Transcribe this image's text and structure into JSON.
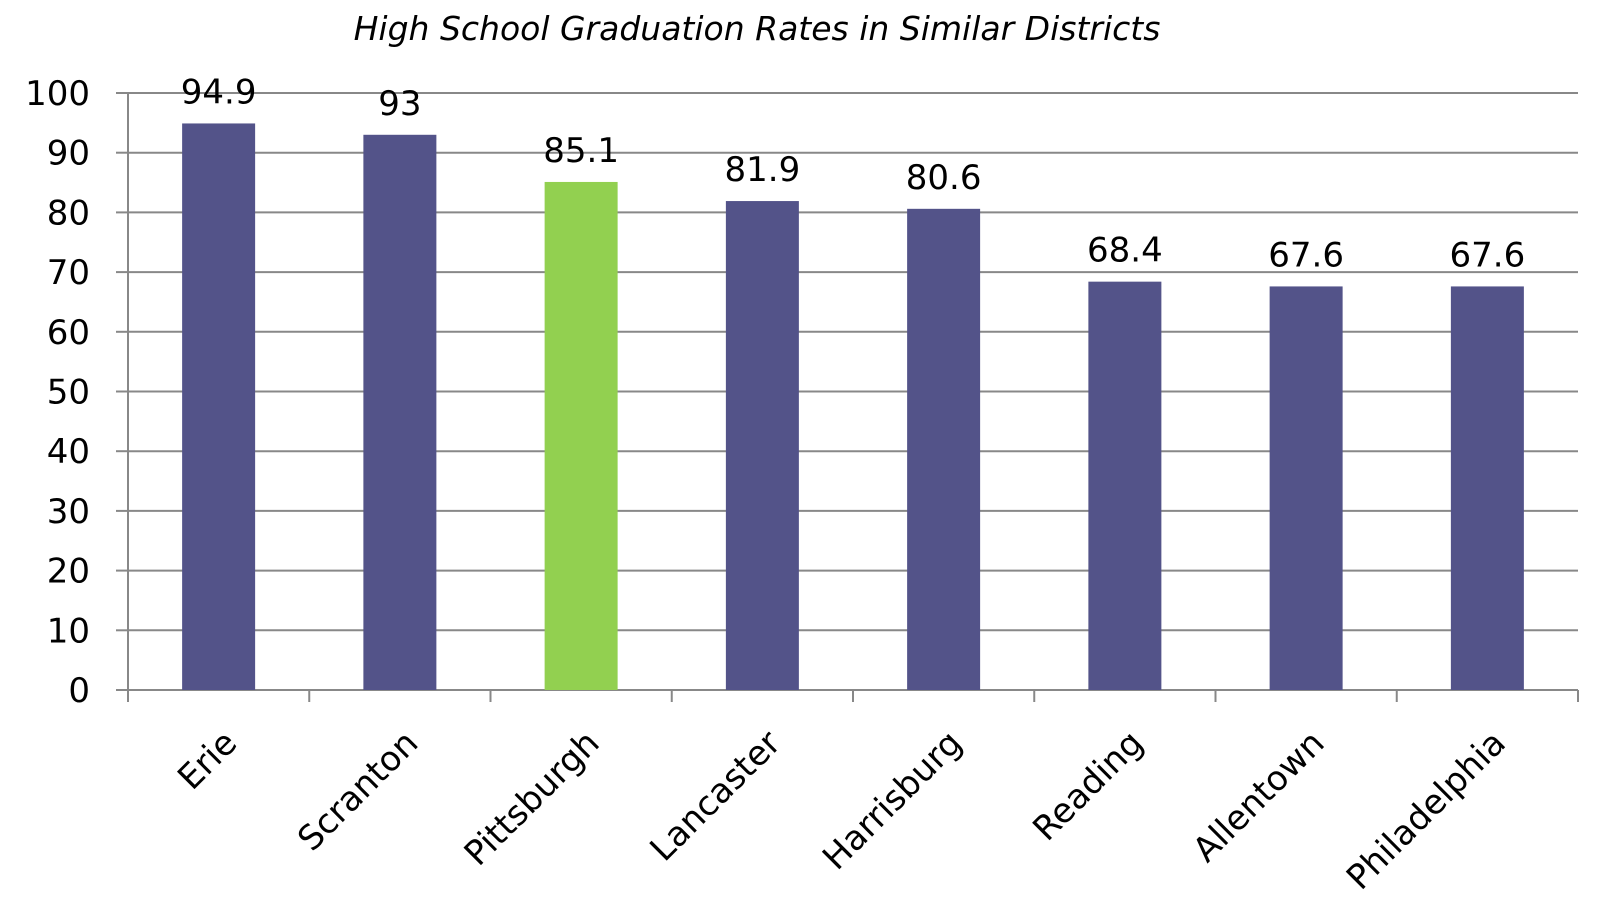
{
  "chart_data": {
    "type": "bar",
    "title": "High School Graduation Rates in Similar Districts",
    "categories": [
      "Erie",
      "Scranton",
      "Pittsburgh",
      "Lancaster",
      "Harrisburg",
      "Reading",
      "Allentown",
      "Philadelphia"
    ],
    "values": [
      94.9,
      93,
      85.1,
      81.9,
      80.6,
      68.4,
      67.6,
      67.6
    ],
    "colors": [
      "#535389",
      "#535389",
      "#92d050",
      "#535389",
      "#535389",
      "#535389",
      "#535389",
      "#535389"
    ],
    "ylim": [
      0,
      100
    ],
    "yticks": [
      0,
      10,
      20,
      30,
      40,
      50,
      60,
      70,
      80,
      90,
      100
    ],
    "grid": true
  }
}
